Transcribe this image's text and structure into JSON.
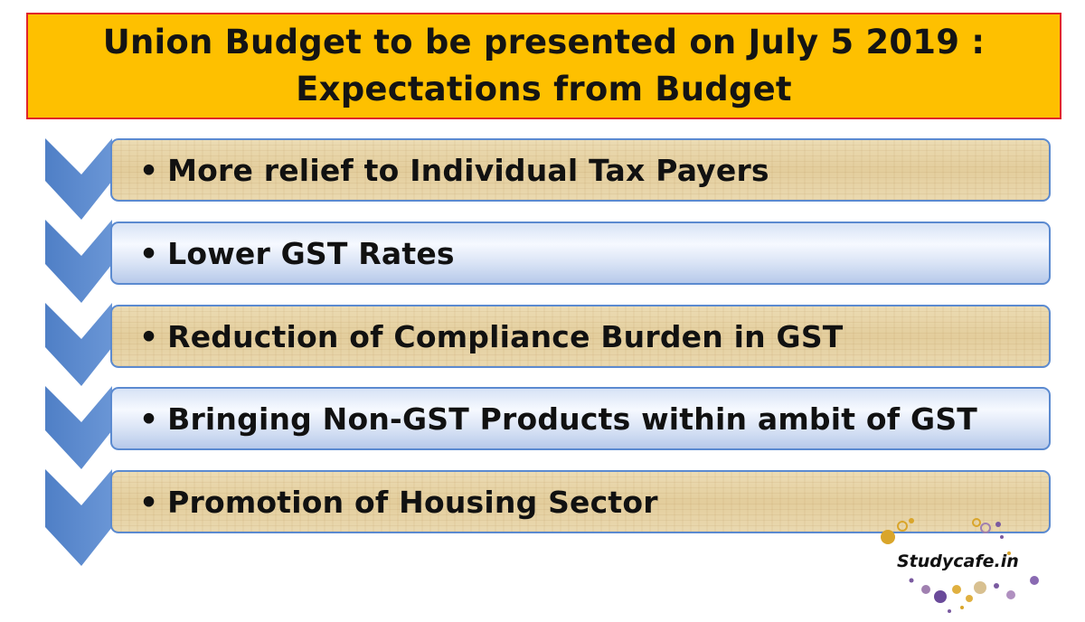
{
  "title": {
    "line1": "Union Budget to be presented on July 5 2019 :",
    "line2": "Expectations from Budget"
  },
  "items": [
    {
      "bullet": "•",
      "text": "More relief to Individual Tax Payers"
    },
    {
      "bullet": "•",
      "text": "Lower GST Rates"
    },
    {
      "bullet": "•",
      "text": "Reduction of Compliance Burden in GST"
    },
    {
      "bullet": "•",
      "text": "Bringing Non-GST Products within ambit of GST"
    },
    {
      "bullet": "•",
      "text": "Promotion of Housing Sector"
    }
  ],
  "brand": {
    "logo_text": "Studycafe.in"
  },
  "colors": {
    "title_background": "#fec000",
    "title_border": "#e0242a",
    "chevron": "#5b8ad0",
    "item_border": "#5b8ad0"
  }
}
